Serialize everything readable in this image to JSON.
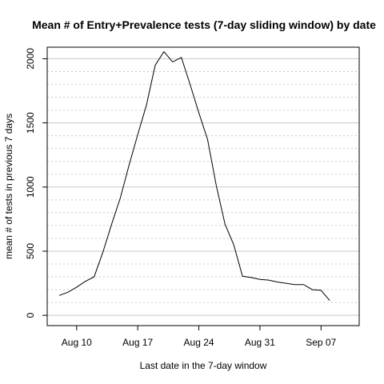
{
  "chart_data": {
    "type": "line",
    "title": "Mean # of Entry+Prevalence tests (7-day sliding window) by date",
    "xlabel": "Last date in the 7-day window",
    "ylabel": "mean # of tests in previous 7 days",
    "x_ticks": [
      {
        "date": "2020-08-10",
        "label": "Aug 10"
      },
      {
        "date": "2020-08-17",
        "label": "Aug 17"
      },
      {
        "date": "2020-08-24",
        "label": "Aug 24"
      },
      {
        "date": "2020-08-31",
        "label": "Aug 31"
      },
      {
        "date": "2020-09-07",
        "label": "Sep 07"
      }
    ],
    "y_ticks": [
      0,
      500,
      1000,
      1500,
      2000
    ],
    "xlim": [
      "2020-08-08",
      "2020-09-10"
    ],
    "ylim": [
      -80,
      2090
    ],
    "grid": {
      "major_y": true,
      "minor_y": true,
      "minor_step": 100
    },
    "series": [
      {
        "x": [
          "2020-08-08",
          "2020-08-09",
          "2020-08-10",
          "2020-08-11",
          "2020-08-12",
          "2020-08-13",
          "2020-08-14",
          "2020-08-15",
          "2020-08-16",
          "2020-08-17",
          "2020-08-18",
          "2020-08-19",
          "2020-08-20",
          "2020-08-21",
          "2020-08-22",
          "2020-08-23",
          "2020-08-24",
          "2020-08-25",
          "2020-08-26",
          "2020-08-27",
          "2020-08-28",
          "2020-08-29",
          "2020-08-30",
          "2020-08-31",
          "2020-09-01",
          "2020-09-02",
          "2020-09-03",
          "2020-09-04",
          "2020-09-05",
          "2020-09-06",
          "2020-09-07",
          "2020-09-08",
          "2020-09-09"
        ],
        "y": [
          155,
          180,
          220,
          265,
          300,
          490,
          710,
          915,
          1170,
          1410,
          1640,
          1950,
          2055,
          1975,
          2010,
          1800,
          1580,
          1370,
          1010,
          710,
          550,
          305,
          295,
          280,
          275,
          260,
          250,
          240,
          240,
          200,
          195,
          115,
          null
        ]
      }
    ]
  }
}
